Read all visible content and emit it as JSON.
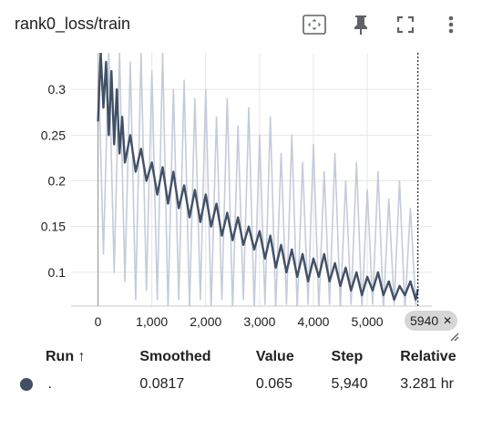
{
  "card": {
    "title": "rank0_loss/train",
    "icons": [
      "fit-domain-icon",
      "pin-icon",
      "fullscreen-icon",
      "more-vert-icon"
    ]
  },
  "chart_data": {
    "type": "line",
    "title": "rank0_loss/train",
    "xlabel": "",
    "ylabel": "",
    "xlim": [
      -500,
      6200
    ],
    "ylim": [
      0.063,
      0.34
    ],
    "x_ticks": [
      0,
      1000,
      2000,
      3000,
      4000,
      5000
    ],
    "x_tick_labels": [
      "0",
      "1,000",
      "2,000",
      "3,000",
      "4,000",
      "5,000"
    ],
    "y_ticks": [
      0.1,
      0.15,
      0.2,
      0.25,
      0.3
    ],
    "y_tick_labels": [
      "0.1",
      "0.15",
      "0.2",
      "0.25",
      "0.3"
    ],
    "grid": true,
    "hover_step": 5940,
    "hover_step_label": "5940",
    "series": [
      {
        "role": "raw",
        "color": "#c5cbd8",
        "x": [
          0,
          100,
          200,
          300,
          400,
          500,
          600,
          700,
          800,
          900,
          1000,
          1100,
          1200,
          1300,
          1400,
          1500,
          1600,
          1700,
          1800,
          1900,
          2000,
          2100,
          2200,
          2300,
          2400,
          2500,
          2600,
          2700,
          2800,
          2900,
          3000,
          3100,
          3200,
          3300,
          3400,
          3500,
          3600,
          3700,
          3800,
          3900,
          4000,
          4100,
          4200,
          4300,
          4400,
          4500,
          4600,
          4700,
          4800,
          4900,
          5000,
          5100,
          5200,
          5300,
          5400,
          5500,
          5600,
          5700,
          5800,
          5900,
          5940
        ],
        "y": [
          0.34,
          0.12,
          0.34,
          0.1,
          0.34,
          0.09,
          0.33,
          0.07,
          0.34,
          0.08,
          0.32,
          0.07,
          0.34,
          0.06,
          0.3,
          0.07,
          0.31,
          0.06,
          0.29,
          0.07,
          0.3,
          0.06,
          0.27,
          0.07,
          0.29,
          0.06,
          0.26,
          0.07,
          0.28,
          0.06,
          0.25,
          0.065,
          0.27,
          0.06,
          0.23,
          0.065,
          0.25,
          0.06,
          0.22,
          0.065,
          0.24,
          0.06,
          0.21,
          0.065,
          0.23,
          0.06,
          0.2,
          0.065,
          0.22,
          0.06,
          0.19,
          0.065,
          0.21,
          0.06,
          0.18,
          0.065,
          0.2,
          0.06,
          0.17,
          0.065,
          0.065
        ]
      },
      {
        "role": "smoothed",
        "color": "#425066",
        "x": [
          0,
          50,
          100,
          150,
          200,
          250,
          300,
          350,
          400,
          450,
          500,
          600,
          700,
          800,
          900,
          1000,
          1100,
          1200,
          1300,
          1400,
          1500,
          1600,
          1700,
          1800,
          1900,
          2000,
          2100,
          2200,
          2300,
          2400,
          2500,
          2600,
          2700,
          2800,
          2900,
          3000,
          3100,
          3200,
          3300,
          3400,
          3500,
          3600,
          3700,
          3800,
          3900,
          4000,
          4100,
          4200,
          4300,
          4400,
          4500,
          4600,
          4700,
          4800,
          4900,
          5000,
          5100,
          5200,
          5300,
          5400,
          5500,
          5600,
          5700,
          5800,
          5900,
          5940
        ],
        "y": [
          0.265,
          0.34,
          0.28,
          0.33,
          0.25,
          0.32,
          0.24,
          0.3,
          0.23,
          0.27,
          0.22,
          0.25,
          0.21,
          0.235,
          0.2,
          0.22,
          0.185,
          0.215,
          0.175,
          0.21,
          0.17,
          0.195,
          0.16,
          0.19,
          0.155,
          0.185,
          0.15,
          0.175,
          0.14,
          0.165,
          0.135,
          0.16,
          0.13,
          0.15,
          0.125,
          0.145,
          0.115,
          0.14,
          0.105,
          0.13,
          0.1,
          0.125,
          0.095,
          0.12,
          0.09,
          0.115,
          0.095,
          0.12,
          0.09,
          0.11,
          0.085,
          0.105,
          0.08,
          0.1,
          0.075,
          0.095,
          0.08,
          0.1,
          0.075,
          0.09,
          0.07,
          0.085,
          0.075,
          0.09,
          0.07,
          0.0817
        ]
      }
    ]
  },
  "table": {
    "headers": {
      "run": "Run ↑",
      "smoothed": "Smoothed",
      "value": "Value",
      "step": "Step",
      "relative": "Relative"
    },
    "rows": [
      {
        "color": "#425066",
        "run": ".",
        "smoothed": "0.0817",
        "value": "0.065",
        "step": "5,940",
        "relative": "3.281 hr"
      }
    ]
  }
}
